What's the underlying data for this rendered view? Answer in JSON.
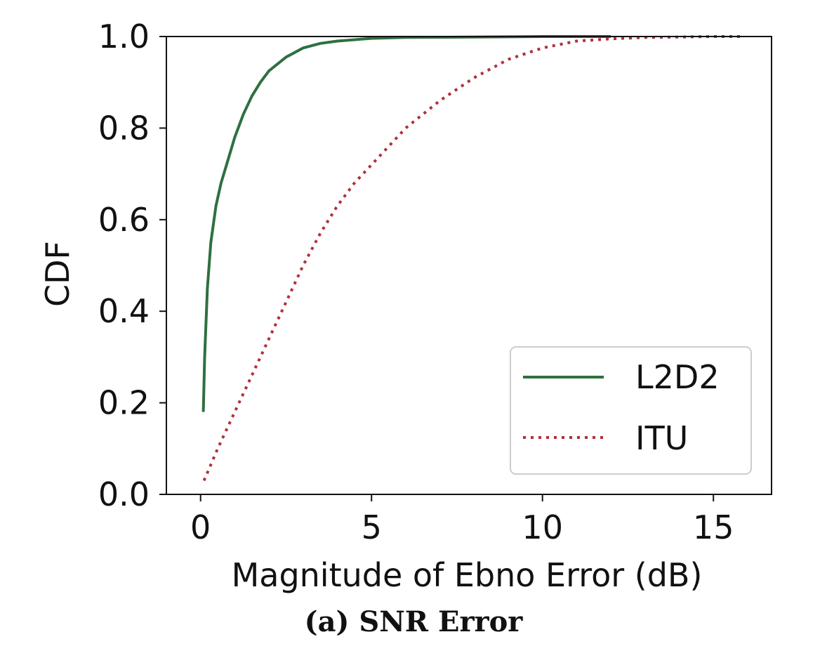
{
  "caption": "(a) SNR Error",
  "colors": {
    "l2d2": "#2e7040",
    "itu": "#b0303a"
  },
  "chart_data": {
    "type": "line",
    "title": "",
    "xlabel": "Magnitude of Ebno Error (dB)",
    "ylabel": "CDF",
    "xlim": [
      -1,
      16.7
    ],
    "ylim": [
      0,
      1
    ],
    "xticks": [
      0,
      5,
      10,
      15
    ],
    "xtick_labels": [
      "0",
      "5",
      "10",
      "15"
    ],
    "yticks": [
      0,
      0.2,
      0.4,
      0.6,
      0.8,
      1.0
    ],
    "ytick_labels": [
      "0.0",
      "0.2",
      "0.4",
      "0.6",
      "0.8",
      "1.0"
    ],
    "grid": false,
    "legend_position": "lower-right",
    "series": [
      {
        "name": "L2D2",
        "style": "solid",
        "color": "#2e7040",
        "x": [
          0.08,
          0.12,
          0.2,
          0.3,
          0.45,
          0.6,
          0.8,
          1.0,
          1.25,
          1.5,
          1.75,
          2.0,
          2.5,
          3.0,
          3.5,
          4.0,
          5.0,
          6.0,
          8.0,
          10.0,
          12.0
        ],
        "y": [
          0.18,
          0.3,
          0.45,
          0.55,
          0.63,
          0.68,
          0.73,
          0.78,
          0.83,
          0.87,
          0.9,
          0.925,
          0.955,
          0.975,
          0.985,
          0.99,
          0.996,
          0.998,
          0.999,
          1.0,
          1.0
        ]
      },
      {
        "name": "ITU",
        "style": "dotted",
        "color": "#b0303a",
        "x": [
          0.1,
          0.5,
          1.0,
          1.5,
          2.0,
          2.5,
          3.0,
          3.5,
          4.0,
          4.5,
          5.0,
          6.0,
          7.0,
          8.0,
          9.0,
          10.0,
          11.0,
          12.0,
          13.0,
          14.0,
          15.0,
          15.8
        ],
        "y": [
          0.03,
          0.1,
          0.18,
          0.26,
          0.34,
          0.42,
          0.5,
          0.57,
          0.63,
          0.68,
          0.72,
          0.8,
          0.86,
          0.91,
          0.95,
          0.975,
          0.99,
          0.995,
          0.998,
          0.999,
          1.0,
          1.0
        ]
      }
    ]
  }
}
